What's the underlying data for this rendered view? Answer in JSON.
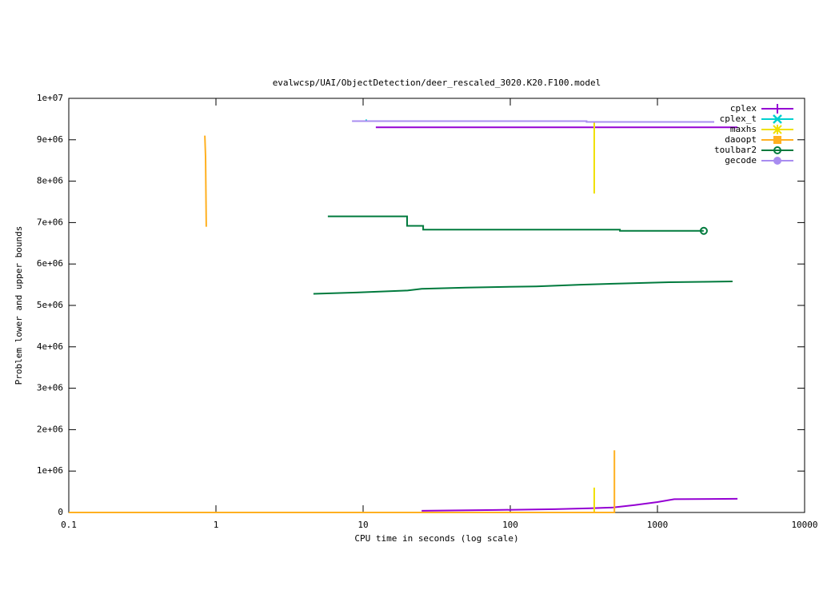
{
  "chart_data": {
    "type": "line",
    "title": "evalwcsp/UAI/ObjectDetection/deer_rescaled_3020.K20.F100.model",
    "x_label": "CPU time in seconds (log scale)",
    "y_label": "Problem lower and upper bounds",
    "x_log": true,
    "xlim": [
      0.1,
      10000
    ],
    "xticks": [
      0.1,
      1,
      10,
      100,
      1000,
      10000
    ],
    "ylim": [
      0,
      10000000
    ],
    "yticks": [
      0,
      {
        "value": 1000000,
        "label": "1e+06"
      },
      {
        "value": 2000000,
        "label": "2e+06"
      },
      {
        "value": 3000000,
        "label": "3e+06"
      },
      {
        "value": 4000000,
        "label": "4e+06"
      },
      {
        "value": 5000000,
        "label": "5e+06"
      },
      {
        "value": 6000000,
        "label": "6e+06"
      },
      {
        "value": 7000000,
        "label": "7e+06"
      },
      {
        "value": 8000000,
        "label": "8e+06"
      },
      {
        "value": 9000000,
        "label": "9e+06"
      },
      {
        "value": 10000000,
        "label": "1e+07"
      }
    ],
    "legend": "top-right",
    "series": [
      {
        "name": "cplex",
        "color": "#9400d3",
        "marker": "plus",
        "upper": {
          "x": [
            12.2,
            3500
          ],
          "values": [
            9300000,
            9300000
          ]
        },
        "lower": {
          "x": [
            25,
            80,
            200,
            350,
            500,
            700,
            1000,
            1300,
            3500
          ],
          "values": [
            40000,
            60000,
            80000,
            100000,
            120000,
            180000,
            250000,
            320000,
            330000
          ]
        }
      },
      {
        "name": "cplex_t",
        "color": "#00d0d0",
        "marker": "cross",
        "upper": {
          "x": [
            10.5,
            10.5
          ],
          "values": [
            9490000,
            9440000
          ]
        }
      },
      {
        "name": "maxhs",
        "color": "#f0e000",
        "marker": "star",
        "upper": {
          "x": [
            372,
            372
          ],
          "values": [
            9450000,
            7700000
          ]
        },
        "lower": {
          "x": [
            372,
            372
          ],
          "values": [
            0,
            600000
          ]
        }
      },
      {
        "name": "daoopt",
        "color": "#ffb020",
        "marker": "square",
        "upper": {
          "x": [
            0.84,
            0.85,
            0.86
          ],
          "values": [
            9100000,
            8600000,
            6900000
          ]
        },
        "lower": {
          "x": [
            0.1,
            510,
            510
          ],
          "values": [
            0,
            0,
            1500000
          ]
        }
      },
      {
        "name": "toulbar2",
        "color": "#007a3d",
        "marker": "circle-open",
        "end_marker": true,
        "upper": {
          "x": [
            5.76,
            19.9,
            19.9,
            25.6,
            25.6,
            556,
            556,
            2065
          ],
          "values": [
            7150000,
            7150000,
            6920000,
            6920000,
            6830000,
            6830000,
            6800000,
            6800000
          ]
        },
        "lower": {
          "x": [
            4.6,
            9,
            20,
            25,
            50,
            150,
            300,
            600,
            1200,
            3240
          ],
          "values": [
            5280000,
            5310000,
            5360000,
            5400000,
            5430000,
            5460000,
            5500000,
            5530000,
            5560000,
            5580000
          ]
        }
      },
      {
        "name": "gecode",
        "color": "#a88cf0",
        "marker": "circle",
        "upper": {
          "x": [
            8.4,
            330,
            330,
            2430
          ],
          "values": [
            9450000,
            9450000,
            9430000,
            9430000
          ]
        }
      }
    ]
  }
}
